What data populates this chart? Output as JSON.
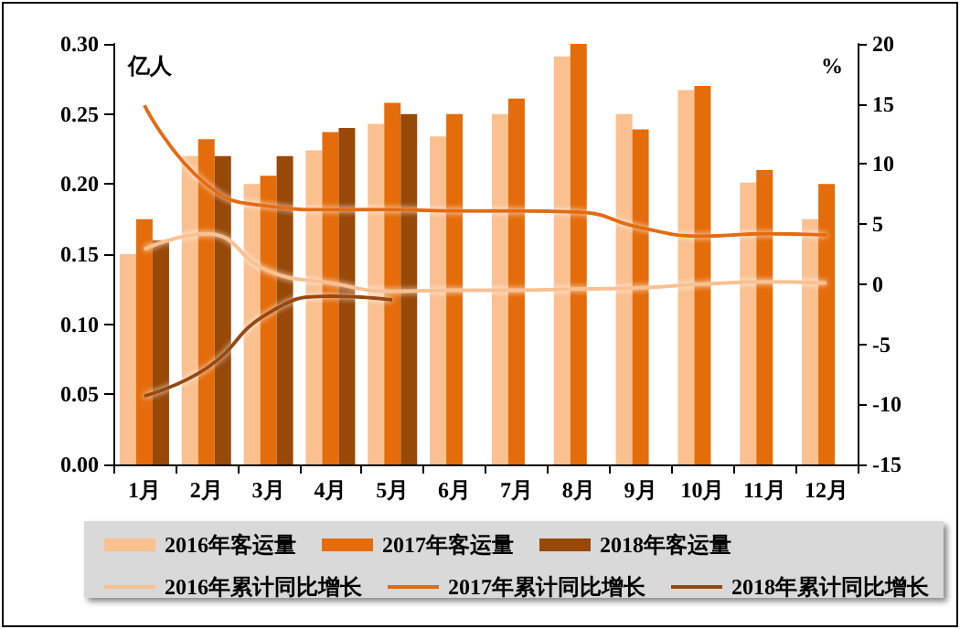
{
  "chart_data": {
    "type": "bar",
    "ylabel": "亿人",
    "y2label": "%",
    "categories": [
      "1月",
      "2月",
      "3月",
      "4月",
      "5月",
      "6月",
      "7月",
      "8月",
      "9月",
      "10月",
      "11月",
      "12月"
    ],
    "series": [
      {
        "name": "2016年客运量",
        "color": "#fac090",
        "values": [
          0.15,
          0.22,
          0.2,
          0.224,
          0.243,
          0.234,
          0.25,
          0.291,
          0.25,
          0.267,
          0.201,
          0.175
        ]
      },
      {
        "name": "2017年客运量",
        "color": "#e46c0a",
        "values": [
          0.175,
          0.232,
          0.206,
          0.237,
          0.258,
          0.25,
          0.261,
          0.3,
          0.239,
          0.27,
          0.21,
          0.2
        ]
      },
      {
        "name": "2018年客运量",
        "color": "#984807",
        "values": [
          0.16,
          0.22,
          0.22,
          0.24,
          0.25,
          null,
          null,
          null,
          null,
          null,
          null,
          null
        ]
      },
      {
        "name": "2016年累计同比增长",
        "type": "line",
        "axis": "y2",
        "color": "#fac090",
        "values": [
          2.9,
          4.2,
          1.1,
          0.1,
          -0.6,
          -0.5,
          -0.5,
          -0.4,
          -0.3,
          0,
          0.2,
          0.1
        ]
      },
      {
        "name": "2017年累计同比增长",
        "type": "line",
        "axis": "y2",
        "color": "#e46c0a",
        "values": [
          14.9,
          8.3,
          6.5,
          6.2,
          6.2,
          6.1,
          6.1,
          6,
          4.7,
          4,
          4.2,
          4.1
        ]
      },
      {
        "name": "2018年累计同比增长",
        "type": "line",
        "axis": "y2",
        "color": "#984807",
        "values": [
          -9.3,
          -7,
          -2.4,
          -1,
          -1.3,
          null,
          null,
          null,
          null,
          null,
          null,
          null
        ]
      }
    ],
    "ylim": [
      0,
      0.3
    ],
    "yticks": [
      {
        "value": 0,
        "label": "0.00"
      },
      0.05,
      {
        "value": 0.1,
        "label": "0.10"
      },
      0.15,
      {
        "value": 0.2,
        "label": "0.20"
      },
      0.25,
      {
        "value": 0.3,
        "label": "0.30"
      }
    ],
    "y2lim": [
      -15,
      20
    ],
    "y2ticks": [
      -15,
      -10,
      -5,
      0,
      5,
      10,
      15,
      20
    ],
    "grid": false,
    "legend": "bottom",
    "marker": "none"
  }
}
